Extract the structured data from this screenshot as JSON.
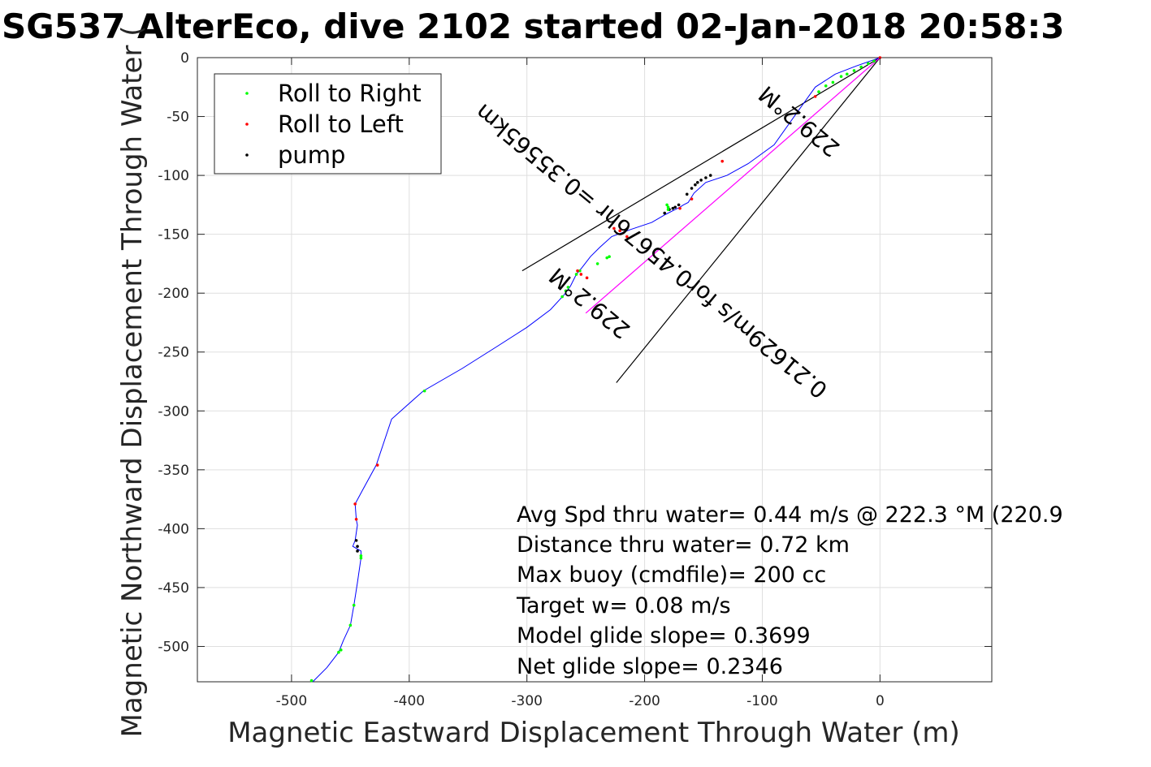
{
  "chart_data": {
    "type": "line",
    "title": "SG537 AlterEco, dive 2102 started 02-Jan-2018 20:58:3",
    "xlabel": "Magnetic Eastward Displacement Through Water (m)",
    "ylabel": "Magnetic Northward Displacement Through Water (",
    "xlim": [
      -580,
      95
    ],
    "ylim": [
      -530,
      0
    ],
    "xticks": [
      -500,
      -400,
      -300,
      -200,
      -100,
      0
    ],
    "yticks": [
      0,
      -50,
      -100,
      -150,
      -200,
      -250,
      -300,
      -350,
      -400,
      -450,
      -500
    ],
    "grid": true,
    "legend": {
      "placement": "top-left",
      "entries": [
        {
          "label": "Roll to Right",
          "color": "#00ff00"
        },
        {
          "label": "Roll to Left",
          "color": "#ff0000"
        },
        {
          "label": "pump",
          "color": "#000000"
        }
      ]
    },
    "series": [
      {
        "name": "track",
        "color": "#0000ff",
        "x": [
          0,
          -20,
          -38,
          -55,
          -70,
          -90,
          -112,
          -130,
          -148,
          -158,
          -163,
          -167,
          -170,
          -176,
          -182,
          -194,
          -212,
          -228,
          -238,
          -246,
          -253,
          -258,
          -263,
          -268,
          -280,
          -300,
          -325,
          -355,
          -388,
          -415,
          -428,
          -440,
          -446,
          -445,
          -444,
          -446,
          -448,
          -441,
          -441,
          -444,
          -447,
          -450,
          -456,
          -460,
          -470,
          -482
        ],
        "y": [
          0,
          -7,
          -14,
          -25,
          -46,
          -74,
          -90,
          -100,
          -106,
          -115,
          -123,
          -125,
          -127,
          -130,
          -133,
          -140,
          -146,
          -152,
          -161,
          -169,
          -178,
          -184,
          -194,
          -201,
          -214,
          -229,
          -245,
          -264,
          -283,
          -307,
          -346,
          -368,
          -379,
          -392,
          -397,
          -410,
          -415,
          -419,
          -425,
          -446,
          -465,
          -482,
          -495,
          -505,
          -518,
          -530
        ]
      }
    ],
    "markers": {
      "roll_right_x": [
        -5,
        -10,
        -16,
        -22,
        -28,
        -33,
        -40,
        -46,
        -52,
        -181,
        -180,
        -180,
        -230,
        -232,
        -240,
        -255,
        -258,
        -265,
        -267,
        -270,
        -387,
        -441,
        -441,
        -447,
        -450,
        -458,
        -460,
        -483
      ],
      "roll_right_y": [
        -3,
        -5,
        -8,
        -11,
        -14,
        -16,
        -21,
        -24,
        -29,
        -125,
        -127,
        -129,
        -169,
        -170,
        -175,
        -181,
        -184,
        -195,
        -198,
        -203,
        -283,
        -423,
        -425,
        -465,
        -482,
        -503,
        -505,
        -529
      ],
      "roll_left_x": [
        0,
        -55,
        -134,
        -160,
        -170,
        -215,
        -221,
        -226,
        -249,
        -254,
        -257,
        -427,
        -446,
        -445
      ],
      "roll_left_y": [
        0,
        -33,
        -88,
        -120,
        -128,
        -152,
        -147,
        -145,
        -187,
        -184,
        -181,
        -346,
        -379,
        -392
      ],
      "pump_x": [
        -144,
        -148,
        -152,
        -155,
        -157,
        -160,
        -164,
        -171,
        -174,
        -176,
        -179,
        -183,
        -445,
        -444,
        -444
      ],
      "pump_y": [
        -100,
        -102,
        -104,
        -106,
        -108,
        -111,
        -116,
        -125,
        -127,
        -128,
        -129,
        -132,
        -410,
        -415,
        -419
      ]
    },
    "net_line": {
      "color": "#ff00ff",
      "x": [
        0,
        -250
      ],
      "y": [
        0,
        -217
      ]
    },
    "cone_lines": {
      "color": "#000000",
      "upper": {
        "x": [
          0,
          -304
        ],
        "y": [
          0,
          -181
        ]
      },
      "lower": {
        "x": [
          0,
          -224
        ],
        "y": [
          0,
          -276
        ]
      }
    },
    "annotations": {
      "text_box": [
        "Avg Spd thru water=  0.44 m/s @ 222.3 °M (220.9",
        "Distance thru water=  0.72 km",
        "Max buoy (cmdfile)= 200 cc",
        "Target w= 0.08 m/s",
        "Model glide slope= 0.3699",
        "Net glide slope= 0.2346"
      ],
      "heading_upper": "229.2°M",
      "velocity_text": "0.21629m/s for0.45676hr =0.35565km",
      "heading_lower": "229.2°M"
    }
  }
}
